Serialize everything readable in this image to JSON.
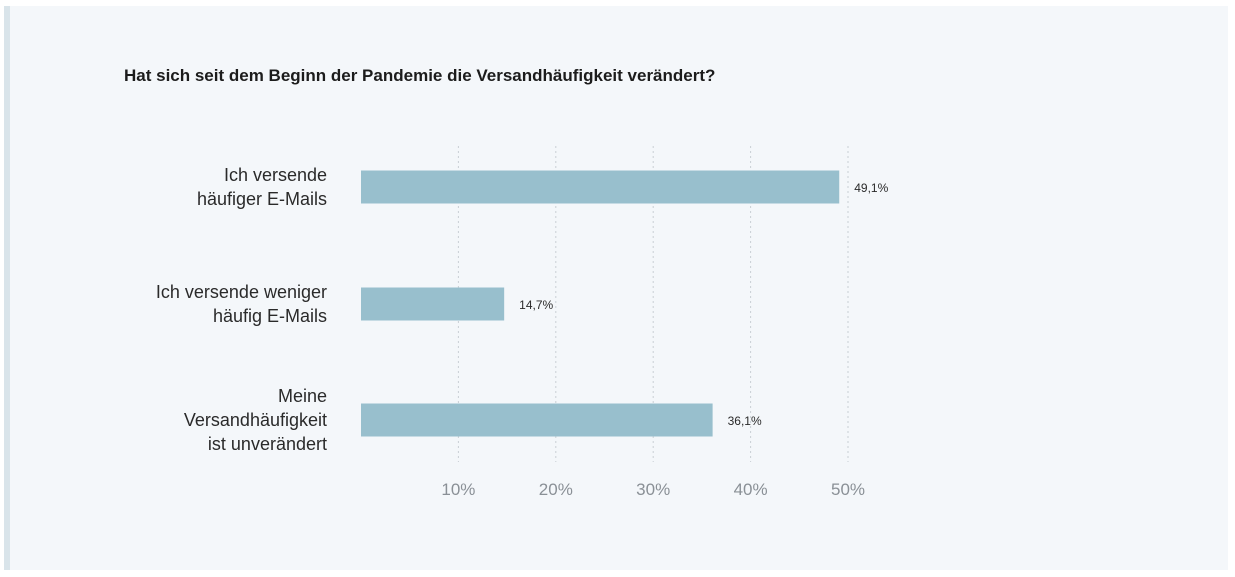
{
  "chart_data": {
    "type": "bar",
    "orientation": "horizontal",
    "title": "Hat sich seit dem Beginn der Pandemie die Versandhäufigkeit verändert?",
    "categories": [
      [
        "Ich versende",
        "häufiger E-Mails"
      ],
      [
        "Ich versende weniger",
        "häufig E-Mails"
      ],
      [
        "Meine",
        "Versandhäufigkeit",
        "ist unverändert"
      ]
    ],
    "values": [
      49.1,
      14.7,
      36.1
    ],
    "value_labels": [
      "49,1%",
      "14,7%",
      "36,1%"
    ],
    "x_ticks": [
      10,
      20,
      30,
      40,
      50
    ],
    "x_tick_labels": [
      "10%",
      "20%",
      "30%",
      "40%",
      "50%"
    ],
    "xlim": [
      0,
      50
    ],
    "grid": "vertical-dotted",
    "legend": "none",
    "colors": {
      "bar": "#98bfcd",
      "grid": "#c9cfd4",
      "background": "#f4f7fa",
      "accent_border": "#d9e4ea"
    }
  }
}
